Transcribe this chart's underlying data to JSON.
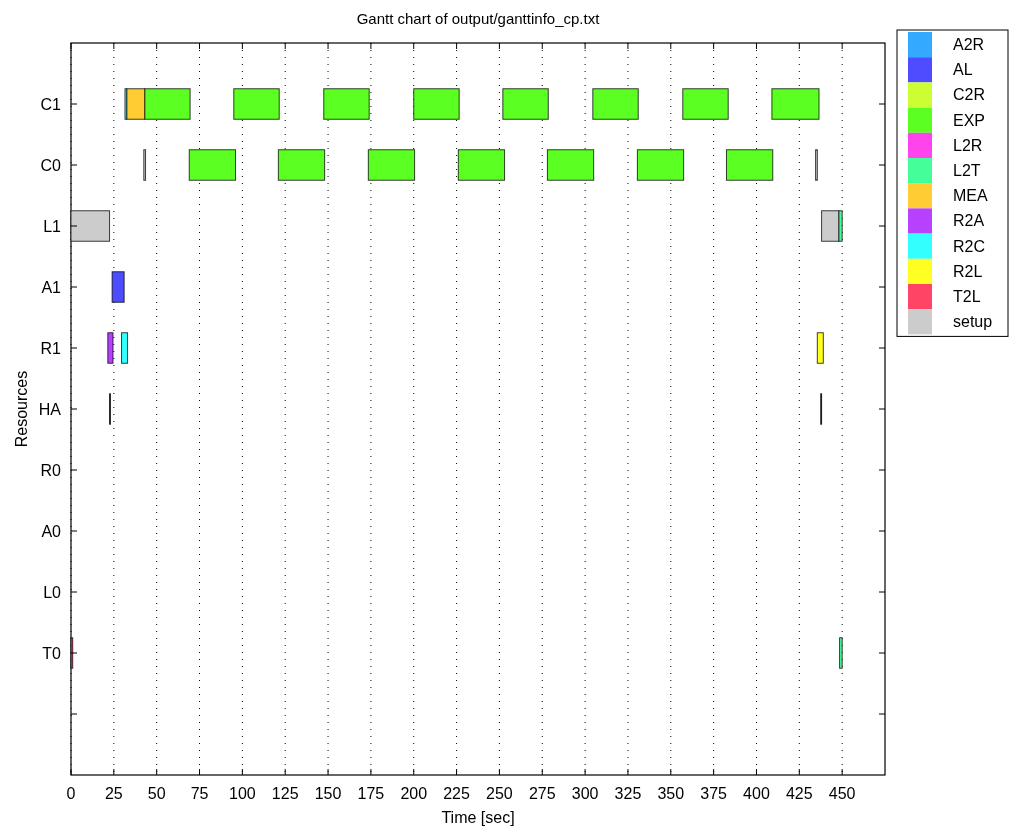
{
  "chart_data": {
    "type": "bar",
    "orientation": "horizontal",
    "title": "Gantt chart of output/ganttinfo_cp.txt",
    "xlabel": "Time [sec]",
    "ylabel": "Resources",
    "categories": [
      "C1",
      "C0",
      "L1",
      "A1",
      "R1",
      "HA",
      "R0",
      "A0",
      "L0",
      "T0",
      null
    ],
    "xlim": [
      0,
      475
    ],
    "xticks": [
      0,
      25,
      50,
      75,
      100,
      125,
      150,
      175,
      200,
      225,
      250,
      275,
      300,
      325,
      350,
      375,
      400,
      425,
      450
    ],
    "grid": "x",
    "legend": "right",
    "series": [
      {
        "name": "A2R",
        "color": "#33aaff",
        "values": [
          null,
          null,
          null,
          null,
          null,
          null,
          null,
          null,
          null,
          null,
          null
        ],
        "base": [
          null,
          null,
          null,
          null,
          null,
          null,
          null,
          null,
          null,
          null,
          null
        ]
      },
      {
        "name": "AL",
        "color": "#4d4dff",
        "values": [
          null,
          null,
          null,
          7,
          null,
          null,
          null,
          null,
          null,
          null,
          null
        ],
        "base": [
          null,
          null,
          null,
          24,
          null,
          null,
          null,
          null,
          null,
          null,
          null
        ]
      },
      {
        "name": "C2R",
        "color": "#ccff33",
        "values": [
          null,
          null,
          null,
          null,
          null,
          null,
          null,
          null,
          null,
          null,
          null
        ],
        "base": [
          null,
          null,
          null,
          null,
          null,
          null,
          null,
          null,
          null,
          null,
          null
        ]
      },
      {
        "name": "EXP",
        "color": "#5cff22",
        "values": [
          26.5,
          27,
          null,
          null,
          null,
          null,
          null,
          null,
          null,
          null,
          null
        ],
        "base": [
          43,
          69,
          null,
          null,
          null,
          null,
          null,
          null,
          null,
          null,
          null
        ]
      },
      {
        "name": "L2R",
        "color": "#ff44ee",
        "values": [
          null,
          null,
          null,
          null,
          null,
          null,
          null,
          null,
          null,
          null,
          null
        ],
        "base": [
          null,
          null,
          null,
          null,
          null,
          null,
          null,
          null,
          null,
          null,
          null
        ]
      },
      {
        "name": "L2T",
        "color": "#44ff99",
        "values": [
          null,
          null,
          2,
          null,
          null,
          null,
          null,
          null,
          null,
          1.5,
          null
        ],
        "base": [
          null,
          null,
          448,
          null,
          null,
          null,
          null,
          null,
          null,
          448.5,
          null
        ]
      },
      {
        "name": "MEA",
        "color": "#ffcc33",
        "values": [
          10.5,
          null,
          null,
          null,
          null,
          null,
          null,
          null,
          null,
          null,
          null
        ],
        "base": [
          32.5,
          null,
          null,
          null,
          null,
          null,
          null,
          null,
          null,
          null,
          null
        ]
      },
      {
        "name": "R2A",
        "color": "#b840ff",
        "values": [
          null,
          null,
          null,
          null,
          3,
          null,
          null,
          null,
          null,
          null,
          null
        ],
        "base": [
          null,
          null,
          null,
          null,
          21.5,
          null,
          null,
          null,
          null,
          null,
          null
        ]
      },
      {
        "name": "R2C",
        "color": "#33ffff",
        "values": [
          1,
          null,
          null,
          null,
          3.5,
          null,
          null,
          null,
          null,
          null,
          null
        ],
        "base": [
          31.5,
          null,
          null,
          null,
          29.5,
          null,
          null,
          null,
          null,
          null,
          null
        ]
      },
      {
        "name": "R2L",
        "color": "#ffff22",
        "values": [
          null,
          null,
          null,
          null,
          3.5,
          null,
          null,
          null,
          null,
          null,
          null
        ],
        "base": [
          null,
          null,
          null,
          null,
          435.5,
          null,
          null,
          null,
          null,
          null,
          null
        ]
      },
      {
        "name": "T2L",
        "color": "#ff4466",
        "values": [
          null,
          null,
          null,
          null,
          null,
          null,
          null,
          null,
          null,
          1,
          null
        ],
        "base": [
          null,
          null,
          null,
          null,
          null,
          null,
          null,
          null,
          null,
          0,
          null
        ]
      },
      {
        "name": "setup",
        "color": "#cccccc",
        "values": [
          null,
          1,
          22.5,
          null,
          null,
          null,
          null,
          null,
          null,
          null,
          null
        ],
        "base": [
          null,
          42.5,
          0,
          null,
          null,
          null,
          null,
          null,
          null,
          null,
          null
        ]
      },
      {
        "color": "#cccccc",
        "values": [
          null,
          1,
          10,
          null,
          null,
          null,
          null,
          null,
          null,
          null,
          null
        ],
        "base": [
          null,
          434.5,
          438,
          null,
          null,
          null,
          null,
          null,
          null,
          null,
          null
        ]
      },
      {
        "color": "#5cff22",
        "values": [
          26.5,
          27,
          null,
          null,
          null,
          null,
          null,
          null,
          null,
          null,
          null
        ],
        "base": [
          95,
          121,
          null,
          null,
          null,
          null,
          null,
          null,
          null,
          null,
          null
        ]
      },
      {
        "color": "#5cff22",
        "values": [
          26.5,
          27,
          null,
          null,
          null,
          null,
          null,
          null,
          null,
          null,
          null
        ],
        "base": [
          147.5,
          173.5,
          null,
          null,
          null,
          null,
          null,
          null,
          null,
          null,
          null
        ]
      },
      {
        "color": "#5cff22",
        "values": [
          26.5,
          27,
          null,
          null,
          null,
          null,
          null,
          null,
          null,
          null,
          null
        ],
        "base": [
          200,
          226,
          null,
          null,
          null,
          null,
          null,
          null,
          null,
          null,
          null
        ]
      },
      {
        "color": "#5cff22",
        "values": [
          26.5,
          27,
          null,
          null,
          null,
          null,
          null,
          null,
          null,
          null,
          null
        ],
        "base": [
          252,
          278,
          null,
          null,
          null,
          null,
          null,
          null,
          null,
          null,
          null
        ]
      },
      {
        "color": "#5cff22",
        "values": [
          26.5,
          27,
          null,
          null,
          null,
          null,
          null,
          null,
          null,
          null,
          null
        ],
        "base": [
          304.5,
          330.5,
          null,
          null,
          null,
          null,
          null,
          null,
          null,
          null,
          null
        ]
      },
      {
        "color": "#5cff22",
        "values": [
          26.5,
          27,
          null,
          null,
          null,
          null,
          null,
          null,
          null,
          null,
          null
        ],
        "base": [
          357,
          382.5,
          null,
          null,
          null,
          null,
          null,
          null,
          null,
          null,
          null
        ]
      },
      {
        "color": "#5cff22",
        "values": [
          27.5,
          null,
          null,
          null,
          null,
          null,
          null,
          null,
          null,
          null,
          null
        ],
        "base": [
          409,
          null,
          null,
          null,
          null,
          null,
          null,
          null,
          null,
          null,
          null
        ]
      },
      {
        "color": "#000000",
        "values": [
          null,
          null,
          null,
          null,
          null,
          0.5,
          null,
          null,
          null,
          null,
          null
        ],
        "base": [
          null,
          null,
          null,
          null,
          null,
          22.5,
          null,
          null,
          null,
          null,
          null
        ]
      },
      {
        "color": "#000000",
        "values": [
          null,
          null,
          null,
          null,
          null,
          0.5,
          null,
          null,
          null,
          null,
          null
        ],
        "base": [
          null,
          null,
          null,
          null,
          null,
          437.5,
          null,
          null,
          null,
          null,
          null
        ]
      }
    ]
  }
}
